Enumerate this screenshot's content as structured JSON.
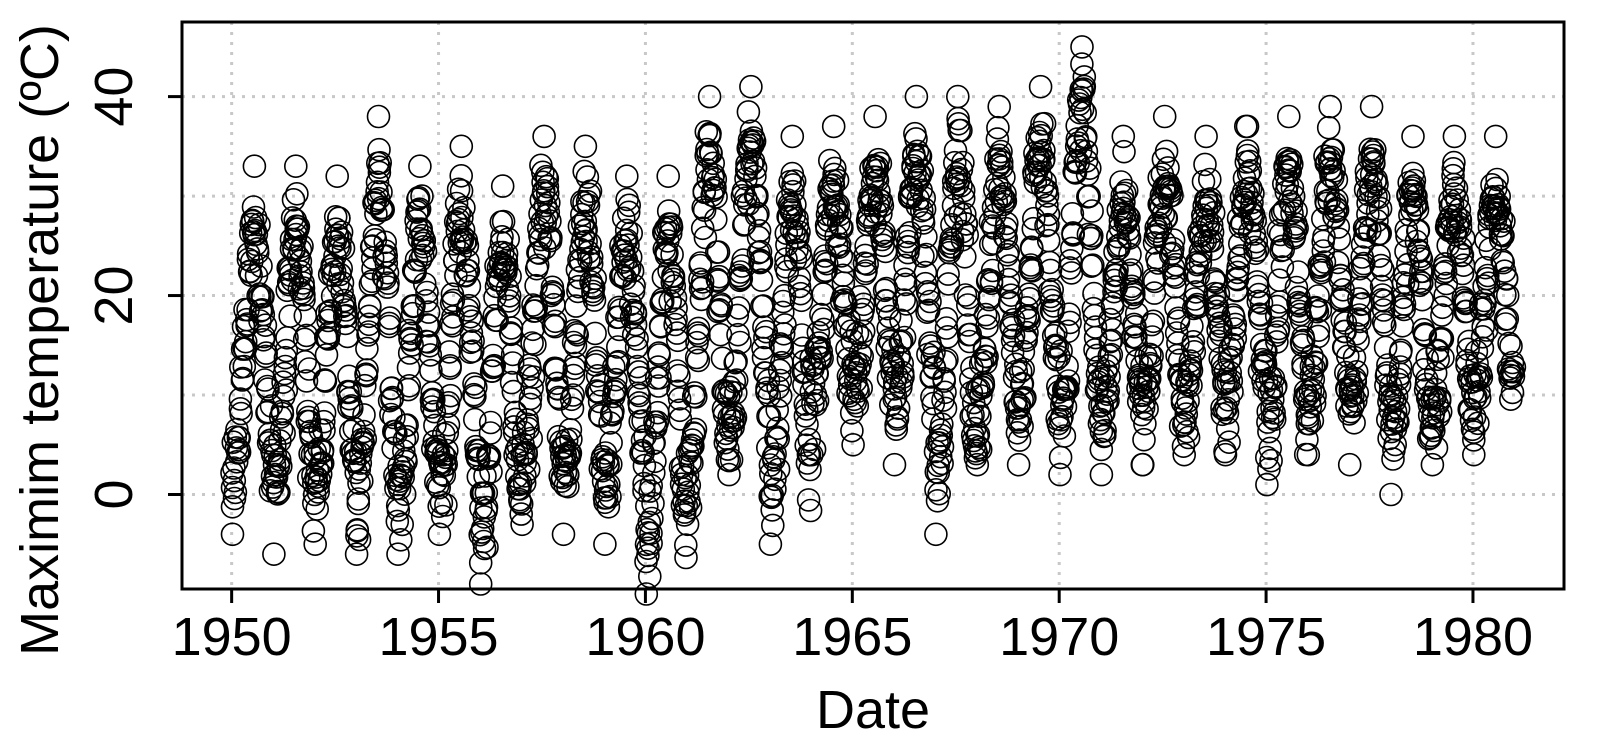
{
  "chart_data": {
    "type": "scatter",
    "xlabel": "Date",
    "ylabel": "Maximim temperature (ºC)",
    "xlim": [
      1948.8,
      1982.2
    ],
    "ylim": [
      -9.5,
      47.5
    ],
    "x_ticks": [
      1950,
      1955,
      1960,
      1965,
      1970,
      1975,
      1980
    ],
    "x_tick_labels": [
      "1950",
      "1955",
      "1960",
      "1965",
      "1970",
      "1975",
      "1980"
    ],
    "y_ticks": [
      0,
      20,
      40
    ],
    "y_tick_labels": [
      "0",
      "20",
      "40"
    ],
    "grid": true,
    "marker": "open-circle",
    "colors": {
      "points": "#000000",
      "grid": "#c8c8c8",
      "frame": "#000000"
    },
    "x_range": [
      1950.0,
      1981.0
    ],
    "summer_max_by_year": [
      {
        "year": 1950,
        "max": 33
      },
      {
        "year": 1951,
        "max": 33
      },
      {
        "year": 1952,
        "max": 32
      },
      {
        "year": 1953,
        "max": 38
      },
      {
        "year": 1954,
        "max": 33
      },
      {
        "year": 1955,
        "max": 35
      },
      {
        "year": 1956,
        "max": 31
      },
      {
        "year": 1957,
        "max": 36
      },
      {
        "year": 1958,
        "max": 35
      },
      {
        "year": 1959,
        "max": 32
      },
      {
        "year": 1960,
        "max": 32
      },
      {
        "year": 1961,
        "max": 40
      },
      {
        "year": 1962,
        "max": 41
      },
      {
        "year": 1963,
        "max": 36
      },
      {
        "year": 1964,
        "max": 37
      },
      {
        "year": 1965,
        "max": 38
      },
      {
        "year": 1966,
        "max": 40
      },
      {
        "year": 1967,
        "max": 40
      },
      {
        "year": 1968,
        "max": 39
      },
      {
        "year": 1969,
        "max": 41
      },
      {
        "year": 1970,
        "max": 45
      },
      {
        "year": 1971,
        "max": 36
      },
      {
        "year": 1972,
        "max": 38
      },
      {
        "year": 1973,
        "max": 36
      },
      {
        "year": 1974,
        "max": 37
      },
      {
        "year": 1975,
        "max": 38
      },
      {
        "year": 1976,
        "max": 39
      },
      {
        "year": 1977,
        "max": 39
      },
      {
        "year": 1978,
        "max": 36
      },
      {
        "year": 1979,
        "max": 36
      },
      {
        "year": 1980,
        "max": 36
      }
    ],
    "winter_min_by_year": [
      {
        "year": 1950,
        "min": -4
      },
      {
        "year": 1951,
        "min": -6
      },
      {
        "year": 1952,
        "min": -5
      },
      {
        "year": 1953,
        "min": -6
      },
      {
        "year": 1954,
        "min": -6
      },
      {
        "year": 1955,
        "min": -4
      },
      {
        "year": 1956,
        "min": -9
      },
      {
        "year": 1957,
        "min": -3
      },
      {
        "year": 1958,
        "min": -4
      },
      {
        "year": 1959,
        "min": -5
      },
      {
        "year": 1960,
        "min": -10
      },
      {
        "year": 1961,
        "min": -3
      },
      {
        "year": 1962,
        "min": 2
      },
      {
        "year": 1963,
        "min": -5
      },
      {
        "year": 1964,
        "min": 4
      },
      {
        "year": 1965,
        "min": 5
      },
      {
        "year": 1966,
        "min": 3
      },
      {
        "year": 1967,
        "min": -4
      },
      {
        "year": 1968,
        "min": 3
      },
      {
        "year": 1969,
        "min": 3
      },
      {
        "year": 1970,
        "min": 2
      },
      {
        "year": 1971,
        "min": 2
      },
      {
        "year": 1972,
        "min": 3
      },
      {
        "year": 1973,
        "min": 4
      },
      {
        "year": 1974,
        "min": 4
      },
      {
        "year": 1975,
        "min": 1
      },
      {
        "year": 1976,
        "min": 4
      },
      {
        "year": 1977,
        "min": 3
      },
      {
        "year": 1978,
        "min": 0
      },
      {
        "year": 1979,
        "min": 3
      },
      {
        "year": 1980,
        "min": 4
      }
    ]
  }
}
